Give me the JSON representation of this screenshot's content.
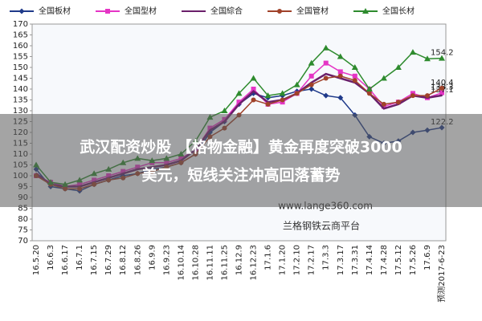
{
  "chart_data": {
    "type": "line",
    "categories": [
      "16.5.20",
      "16.6.3",
      "16.6.17",
      "16.7.1",
      "16.7.15",
      "16.7.29",
      "16.8.12",
      "16.8.26",
      "16.9.9",
      "16.9.23",
      "16.10.14",
      "16.10.28",
      "16.11.11",
      "16.11.25",
      "16.12.9",
      "16.12.23",
      "17.1.6",
      "17.1.20",
      "17.2.10",
      "17.2.17",
      "17.3.3",
      "17.3.17",
      "17.3.31",
      "17.4.14",
      "17.4.28",
      "17.5.12",
      "17.5.26",
      "17.6.9",
      "预测2017-6-23"
    ],
    "series": [
      {
        "name": "全国板材",
        "color": "#1f3a8a",
        "marker": "diamond",
        "values": [
          103,
          95,
          94,
          93,
          96,
          98,
          100,
          101,
          103,
          104,
          106,
          110,
          120,
          125,
          133,
          138,
          136,
          137,
          139,
          140,
          137,
          136,
          128,
          118,
          115,
          116,
          120,
          121,
          122.2
        ]
      },
      {
        "name": "全国型材",
        "color": "#e535c5",
        "marker": "square",
        "values": [
          100,
          97,
          95,
          96,
          98,
          100,
          102,
          104,
          106,
          106,
          108,
          112,
          122,
          126,
          134,
          140,
          133,
          134,
          138,
          146,
          152,
          148,
          146,
          140,
          132,
          134,
          138,
          136,
          138.3
        ]
      },
      {
        "name": "全国綜合",
        "color": "#6a1f6a",
        "marker": "none",
        "values": [
          101,
          96,
          95,
          95,
          97,
          99,
          101,
          103,
          104,
          105,
          107,
          112,
          121,
          125,
          133,
          139,
          134,
          135,
          138,
          143,
          147,
          145,
          143,
          138,
          131,
          133,
          137,
          136,
          137.1
        ]
      },
      {
        "name": "全国管材",
        "color": "#a0422a",
        "marker": "circle",
        "values": [
          100,
          96,
          94,
          94,
          96,
          98,
          99,
          101,
          102,
          104,
          106,
          110,
          118,
          122,
          128,
          135,
          133,
          135,
          138,
          142,
          145,
          146,
          144,
          138,
          133,
          134,
          137,
          137,
          140.4
        ]
      },
      {
        "name": "全国长材",
        "color": "#2e8b2e",
        "marker": "triangle",
        "values": [
          105,
          97,
          96,
          98,
          101,
          103,
          106,
          108,
          107,
          108,
          110,
          116,
          127,
          130,
          138,
          145,
          137,
          138,
          142,
          152,
          159,
          155,
          150,
          140,
          145,
          150,
          157,
          154,
          154.2
        ]
      }
    ],
    "ylim": [
      70,
      170
    ],
    "yticks": [
      70,
      75,
      80,
      85,
      90,
      95,
      100,
      105,
      110,
      115,
      120,
      125,
      130,
      135,
      140,
      145,
      150,
      155,
      160,
      165,
      170
    ],
    "grid": false
  },
  "overlay": {
    "banner": [
      "武汉配资炒股 【格物金融】黄金再度突破3000",
      "美元，短线关注冲高回落蓄势"
    ],
    "watermark_url": "www.lange360.com",
    "watermark_name": "兰格钢铁云商平台"
  }
}
